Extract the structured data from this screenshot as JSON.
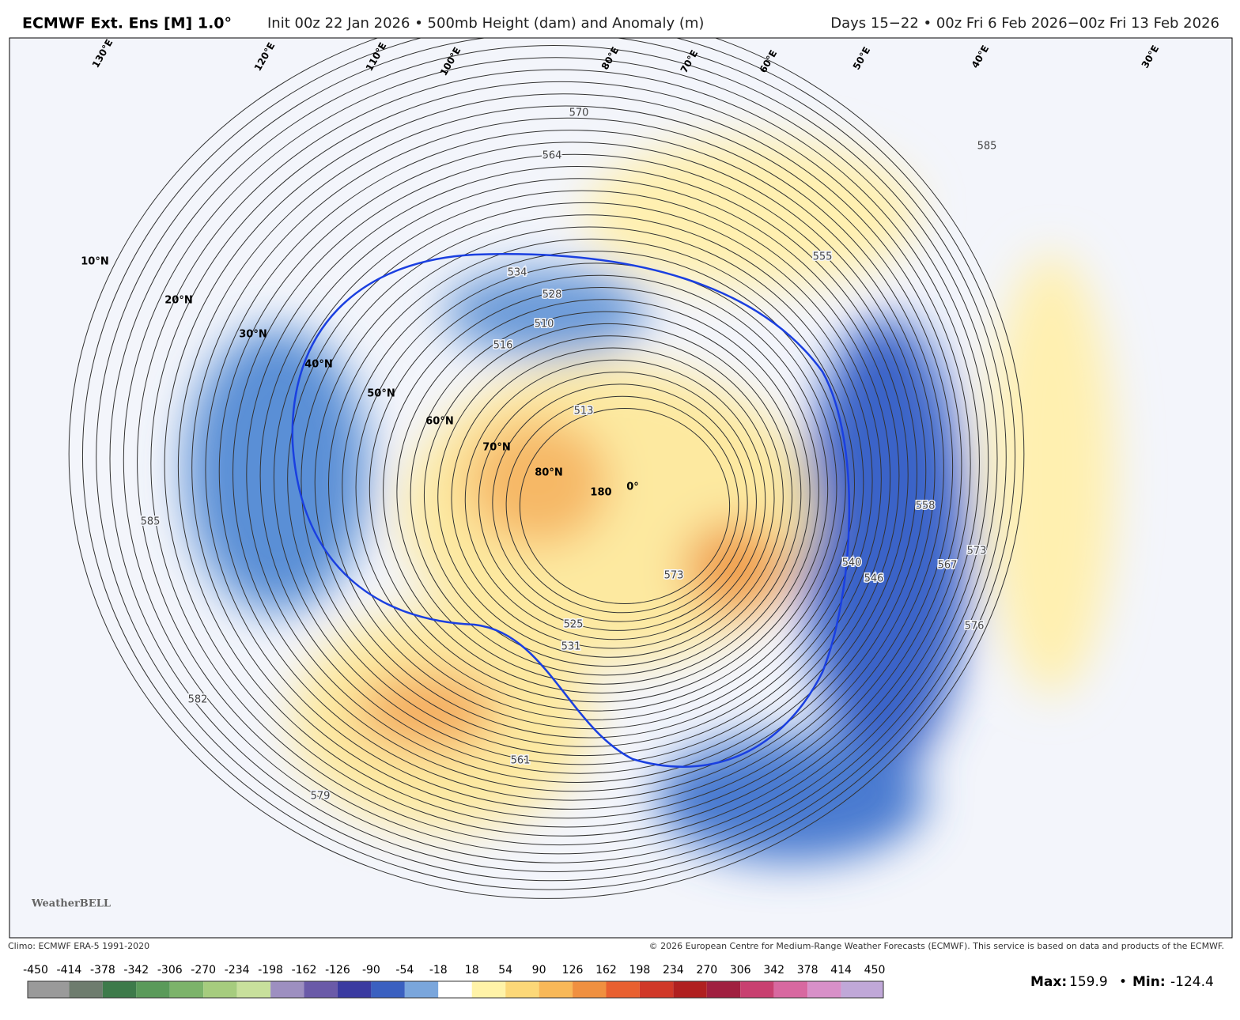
{
  "header": {
    "title": "ECMWF Ext. Ens [M] 1.0°",
    "subtitle": "Init 00z 22 Jan 2026 • 500mb Height (dam) and Anomaly (m)",
    "period": "Days 15−22 • 00z Fri 6 Feb 2026−00z Fri 13 Feb 2026"
  },
  "map": {
    "contour_labels": [
      "570",
      "564",
      "585",
      "555",
      "534",
      "528",
      "516",
      "510",
      "513",
      "540",
      "546",
      "558",
      "567",
      "573",
      "576",
      "585",
      "582",
      "579",
      "561",
      "531",
      "525",
      "573"
    ],
    "lat_labels": [
      "10°N",
      "20°N",
      "30°N",
      "40°N",
      "50°N",
      "60°N",
      "70°N",
      "80°N",
      "180",
      "0°"
    ],
    "lon_labels": [
      "130°E",
      "120°E",
      "110°E",
      "100°E",
      "80°E",
      "70°E",
      "60°E",
      "50°E",
      "40°E",
      "30°E"
    ],
    "logo": "WeatherBELL"
  },
  "footer": {
    "climo": "Climo: ECMWF ERA-5 1991-2020",
    "copyright": "© 2026 European Centre for Medium-Range Weather Forecasts (ECMWF). This service is based on data and products of the ECMWF."
  },
  "colorbar": {
    "ticks": [
      -450,
      -414,
      -378,
      -342,
      -306,
      -270,
      -234,
      -198,
      -162,
      -126,
      -90,
      -54,
      -18,
      18,
      54,
      90,
      126,
      162,
      198,
      234,
      270,
      306,
      342,
      378,
      414,
      450
    ],
    "colors": [
      "#9a9a9a",
      "#6e7c6e",
      "#3d7a4a",
      "#5a9a5a",
      "#7cb36a",
      "#a6cc7e",
      "#c8e09c",
      "#9d8fc0",
      "#6a5aa8",
      "#3a3aa0",
      "#3a60c0",
      "#7aa6dc",
      "#ffffff",
      "#fff3a8",
      "#fcd878",
      "#f8b858",
      "#f09040",
      "#e86030",
      "#d03828",
      "#b02020",
      "#a02040",
      "#c84070",
      "#d868a0",
      "#d890c8",
      "#c0a8d8"
    ]
  },
  "stats": {
    "max_label": "Max:",
    "max": 159.9,
    "separator": "•",
    "min_label": "Min:",
    "min": -124.4
  }
}
